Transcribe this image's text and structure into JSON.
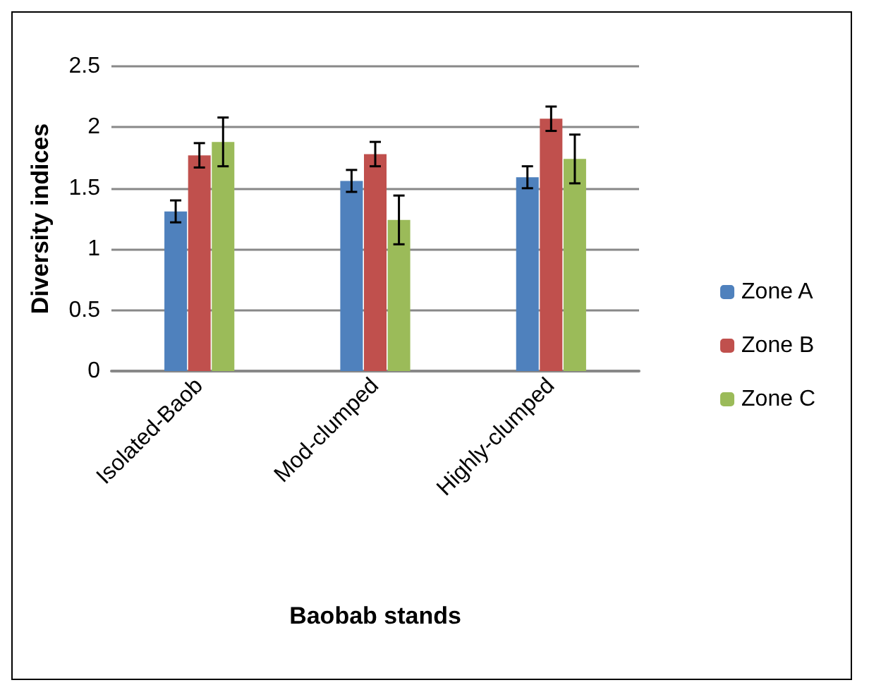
{
  "chart_data": {
    "type": "bar",
    "xlabel": "Baobab stands",
    "ylabel": "Diversity indices",
    "categories": [
      "Isolated-Baob",
      "Mod-clumped",
      "Highly-clumped"
    ],
    "series": [
      {
        "name": "Zone A",
        "color": "#4f81bd",
        "values": [
          1.31,
          1.56,
          1.59
        ],
        "errors": [
          0.09,
          0.09,
          0.09
        ]
      },
      {
        "name": "Zone B",
        "color": "#c0504d",
        "values": [
          1.77,
          1.78,
          2.07
        ],
        "errors": [
          0.1,
          0.1,
          0.1
        ]
      },
      {
        "name": "Zone C",
        "color": "#9bbb59",
        "values": [
          1.88,
          1.24,
          1.74
        ],
        "errors": [
          0.2,
          0.2,
          0.2
        ]
      }
    ],
    "ylim": [
      0,
      2.5
    ],
    "yticks": [
      0,
      0.5,
      1,
      1.5,
      2,
      2.5
    ],
    "grid": "y",
    "legend": "right"
  }
}
